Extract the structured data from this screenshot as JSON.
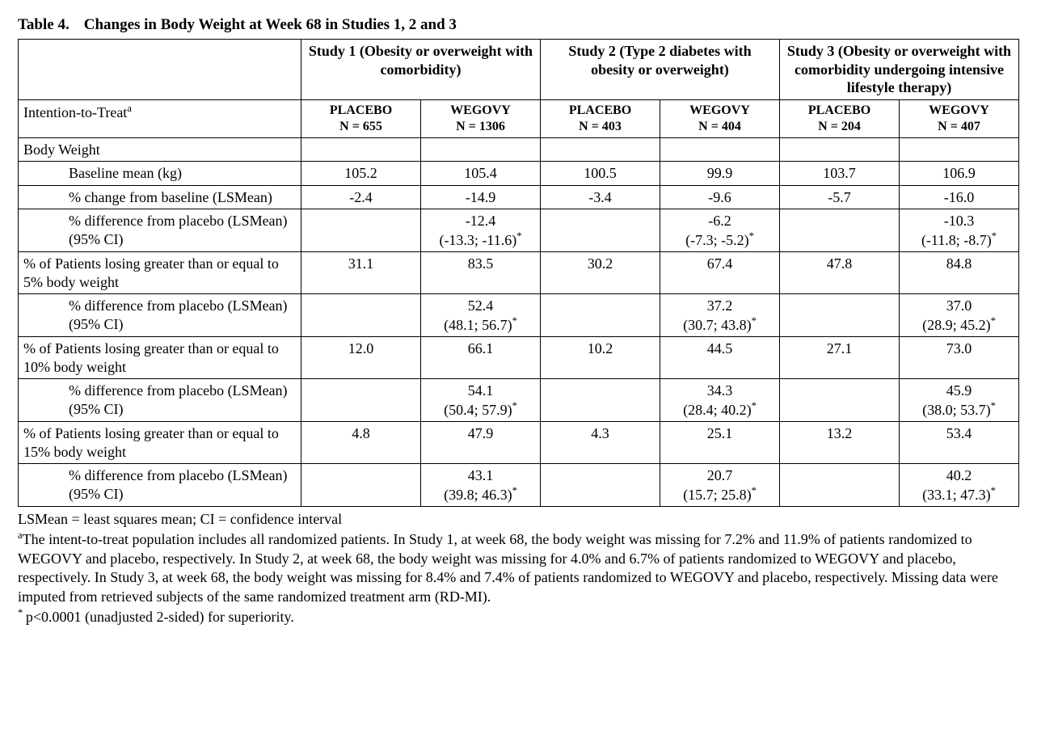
{
  "title_prefix": "Table 4.",
  "title_text": "Changes in Body Weight at Week 68 in Studies 1, 2 and 3",
  "studies": [
    {
      "header": "Study 1 (Obesity or overweight with comorbidity)",
      "placebo_n": "PLACEBO\nN = 655",
      "drug_n": "WEGOVY\nN = 1306"
    },
    {
      "header": "Study 2 (Type 2 diabetes with obesity or overweight)",
      "placebo_n": "PLACEBO\nN = 403",
      "drug_n": "WEGOVY\nN = 404"
    },
    {
      "header": "Study 3 (Obesity or overweight with comorbidity undergoing intensive lifestyle therapy)",
      "placebo_n": "PLACEBO\nN = 204",
      "drug_n": "WEGOVY\nN = 407"
    }
  ],
  "itt_label": "Intention-to-Treat",
  "itt_sup": "a",
  "section_label": "Body Weight",
  "rows": [
    {
      "label": "Baseline mean (kg)",
      "indent": true,
      "vals": [
        "105.2",
        "105.4",
        "100.5",
        "99.9",
        "103.7",
        "106.9"
      ]
    },
    {
      "label": "% change from baseline (LSMean)",
      "indent": true,
      "vals": [
        "-2.4",
        "-14.9",
        "-3.4",
        "-9.6",
        "-5.7",
        "-16.0"
      ]
    },
    {
      "label": "% difference from placebo (LSMean) (95% CI)",
      "indent": true,
      "vals": [
        "",
        "-12.4\n(-13.3; -11.6)*",
        "",
        "-6.2\n(-7.3; -5.2)*",
        "",
        "-10.3\n(-11.8; -8.7)*"
      ],
      "sup": true
    },
    {
      "label": "% of Patients losing greater than or equal to 5% body weight",
      "indent": false,
      "vals": [
        "31.1",
        "83.5",
        "30.2",
        "67.4",
        "47.8",
        "84.8"
      ]
    },
    {
      "label": "% difference from placebo (LSMean) (95% CI)",
      "indent": true,
      "vals": [
        "",
        "52.4\n(48.1; 56.7)*",
        "",
        "37.2\n(30.7; 43.8)*",
        "",
        "37.0\n(28.9; 45.2)*"
      ],
      "sup": true
    },
    {
      "label": "% of Patients losing greater than or equal to 10% body weight",
      "indent": false,
      "vals": [
        "12.0",
        "66.1",
        "10.2",
        "44.5",
        "27.1",
        "73.0"
      ]
    },
    {
      "label": "% difference from placebo (LSMean) (95% CI)",
      "indent": true,
      "vals": [
        "",
        "54.1\n(50.4; 57.9)*",
        "",
        "34.3\n(28.4; 40.2)*",
        "",
        "45.9\n(38.0; 53.7)*"
      ],
      "sup": true
    },
    {
      "label": "% of Patients losing greater than or equal to 15% body weight",
      "indent": false,
      "vals": [
        "4.8",
        "47.9",
        "4.3",
        "25.1",
        "13.2",
        "53.4"
      ]
    },
    {
      "label": "% difference from placebo (LSMean) (95% CI)",
      "indent": true,
      "vals": [
        "",
        "43.1\n(39.8; 46.3)*",
        "",
        "20.7\n(15.7; 25.8)*",
        "",
        "40.2\n(33.1; 47.3)*"
      ],
      "sup": true
    }
  ],
  "footnote1": "LSMean = least squares mean; CI = confidence interval",
  "footnote2_sup": "a",
  "footnote2": "The intent-to-treat population includes all randomized patients. In Study 1, at week 68, the body weight was missing for 7.2% and 11.9% of patients randomized to WEGOVY and placebo, respectively. In Study 2, at week 68, the body weight was missing for 4.0% and 6.7% of patients randomized to WEGOVY and placebo, respectively. In Study 3, at week 68, the body weight was missing for 8.4% and 7.4% of patients randomized to WEGOVY and placebo, respectively. Missing data were imputed from retrieved subjects of the same randomized treatment arm (RD-MI).",
  "footnote3_sup": "*",
  "footnote3": "p<0.0001 (unadjusted 2-sided) for superiority."
}
